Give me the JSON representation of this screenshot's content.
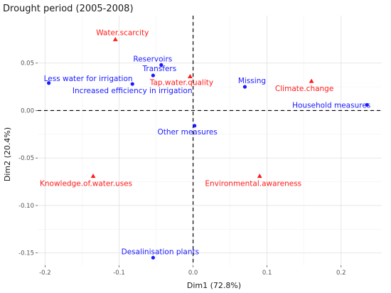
{
  "chart_data": {
    "type": "scatter",
    "title": "Drought period (2005-2008)",
    "xlabel": "Dim1 (72.8%)",
    "ylabel": "Dim2 (20.4%)",
    "xlim": [
      -0.21,
      0.255
    ],
    "ylim": [
      -0.163,
      0.1
    ],
    "x_ticks": [
      -0.2,
      -0.1,
      0.0,
      0.1,
      0.2
    ],
    "x_tick_labels": [
      "-0.2",
      "-0.1",
      "0.0",
      "0.1",
      "0.2"
    ],
    "y_ticks": [
      -0.15,
      -0.1,
      -0.05,
      0.0,
      0.05
    ],
    "y_tick_labels": [
      "-0.15",
      "-0.10",
      "-0.05",
      "0.00",
      "0.05"
    ],
    "grid": true,
    "reference_lines": {
      "x": 0,
      "y": 0
    },
    "series": [
      {
        "color": "#1a1aff",
        "marker": "circle",
        "points": [
          {
            "label": "Less water for irrigation",
            "x": -0.195,
            "y": 0.029
          },
          {
            "label": "Increased efficiency in irrigation",
            "x": -0.082,
            "y": 0.028
          },
          {
            "label": "Reservoirs",
            "x": -0.043,
            "y": 0.048
          },
          {
            "label": "Transfers",
            "x": -0.054,
            "y": 0.037
          },
          {
            "label": "Missing",
            "x": 0.07,
            "y": 0.025
          },
          {
            "label": "Household measures",
            "x": 0.235,
            "y": 0.006
          },
          {
            "label": "Other measures",
            "x": 0.002,
            "y": -0.016
          },
          {
            "label": "Desalinisation plants",
            "x": -0.054,
            "y": -0.155
          }
        ]
      },
      {
        "color": "#ff1a1a",
        "marker": "triangle",
        "points": [
          {
            "label": "Water.scarcity",
            "x": -0.105,
            "y": 0.075
          },
          {
            "label": "Tap.water.quality",
            "x": -0.004,
            "y": 0.036
          },
          {
            "label": "Climate.change",
            "x": 0.16,
            "y": 0.031
          },
          {
            "label": "Knowledge.of.water.uses",
            "x": -0.135,
            "y": -0.069
          },
          {
            "label": "Environmental.awareness",
            "x": 0.09,
            "y": -0.069
          }
        ]
      }
    ]
  }
}
